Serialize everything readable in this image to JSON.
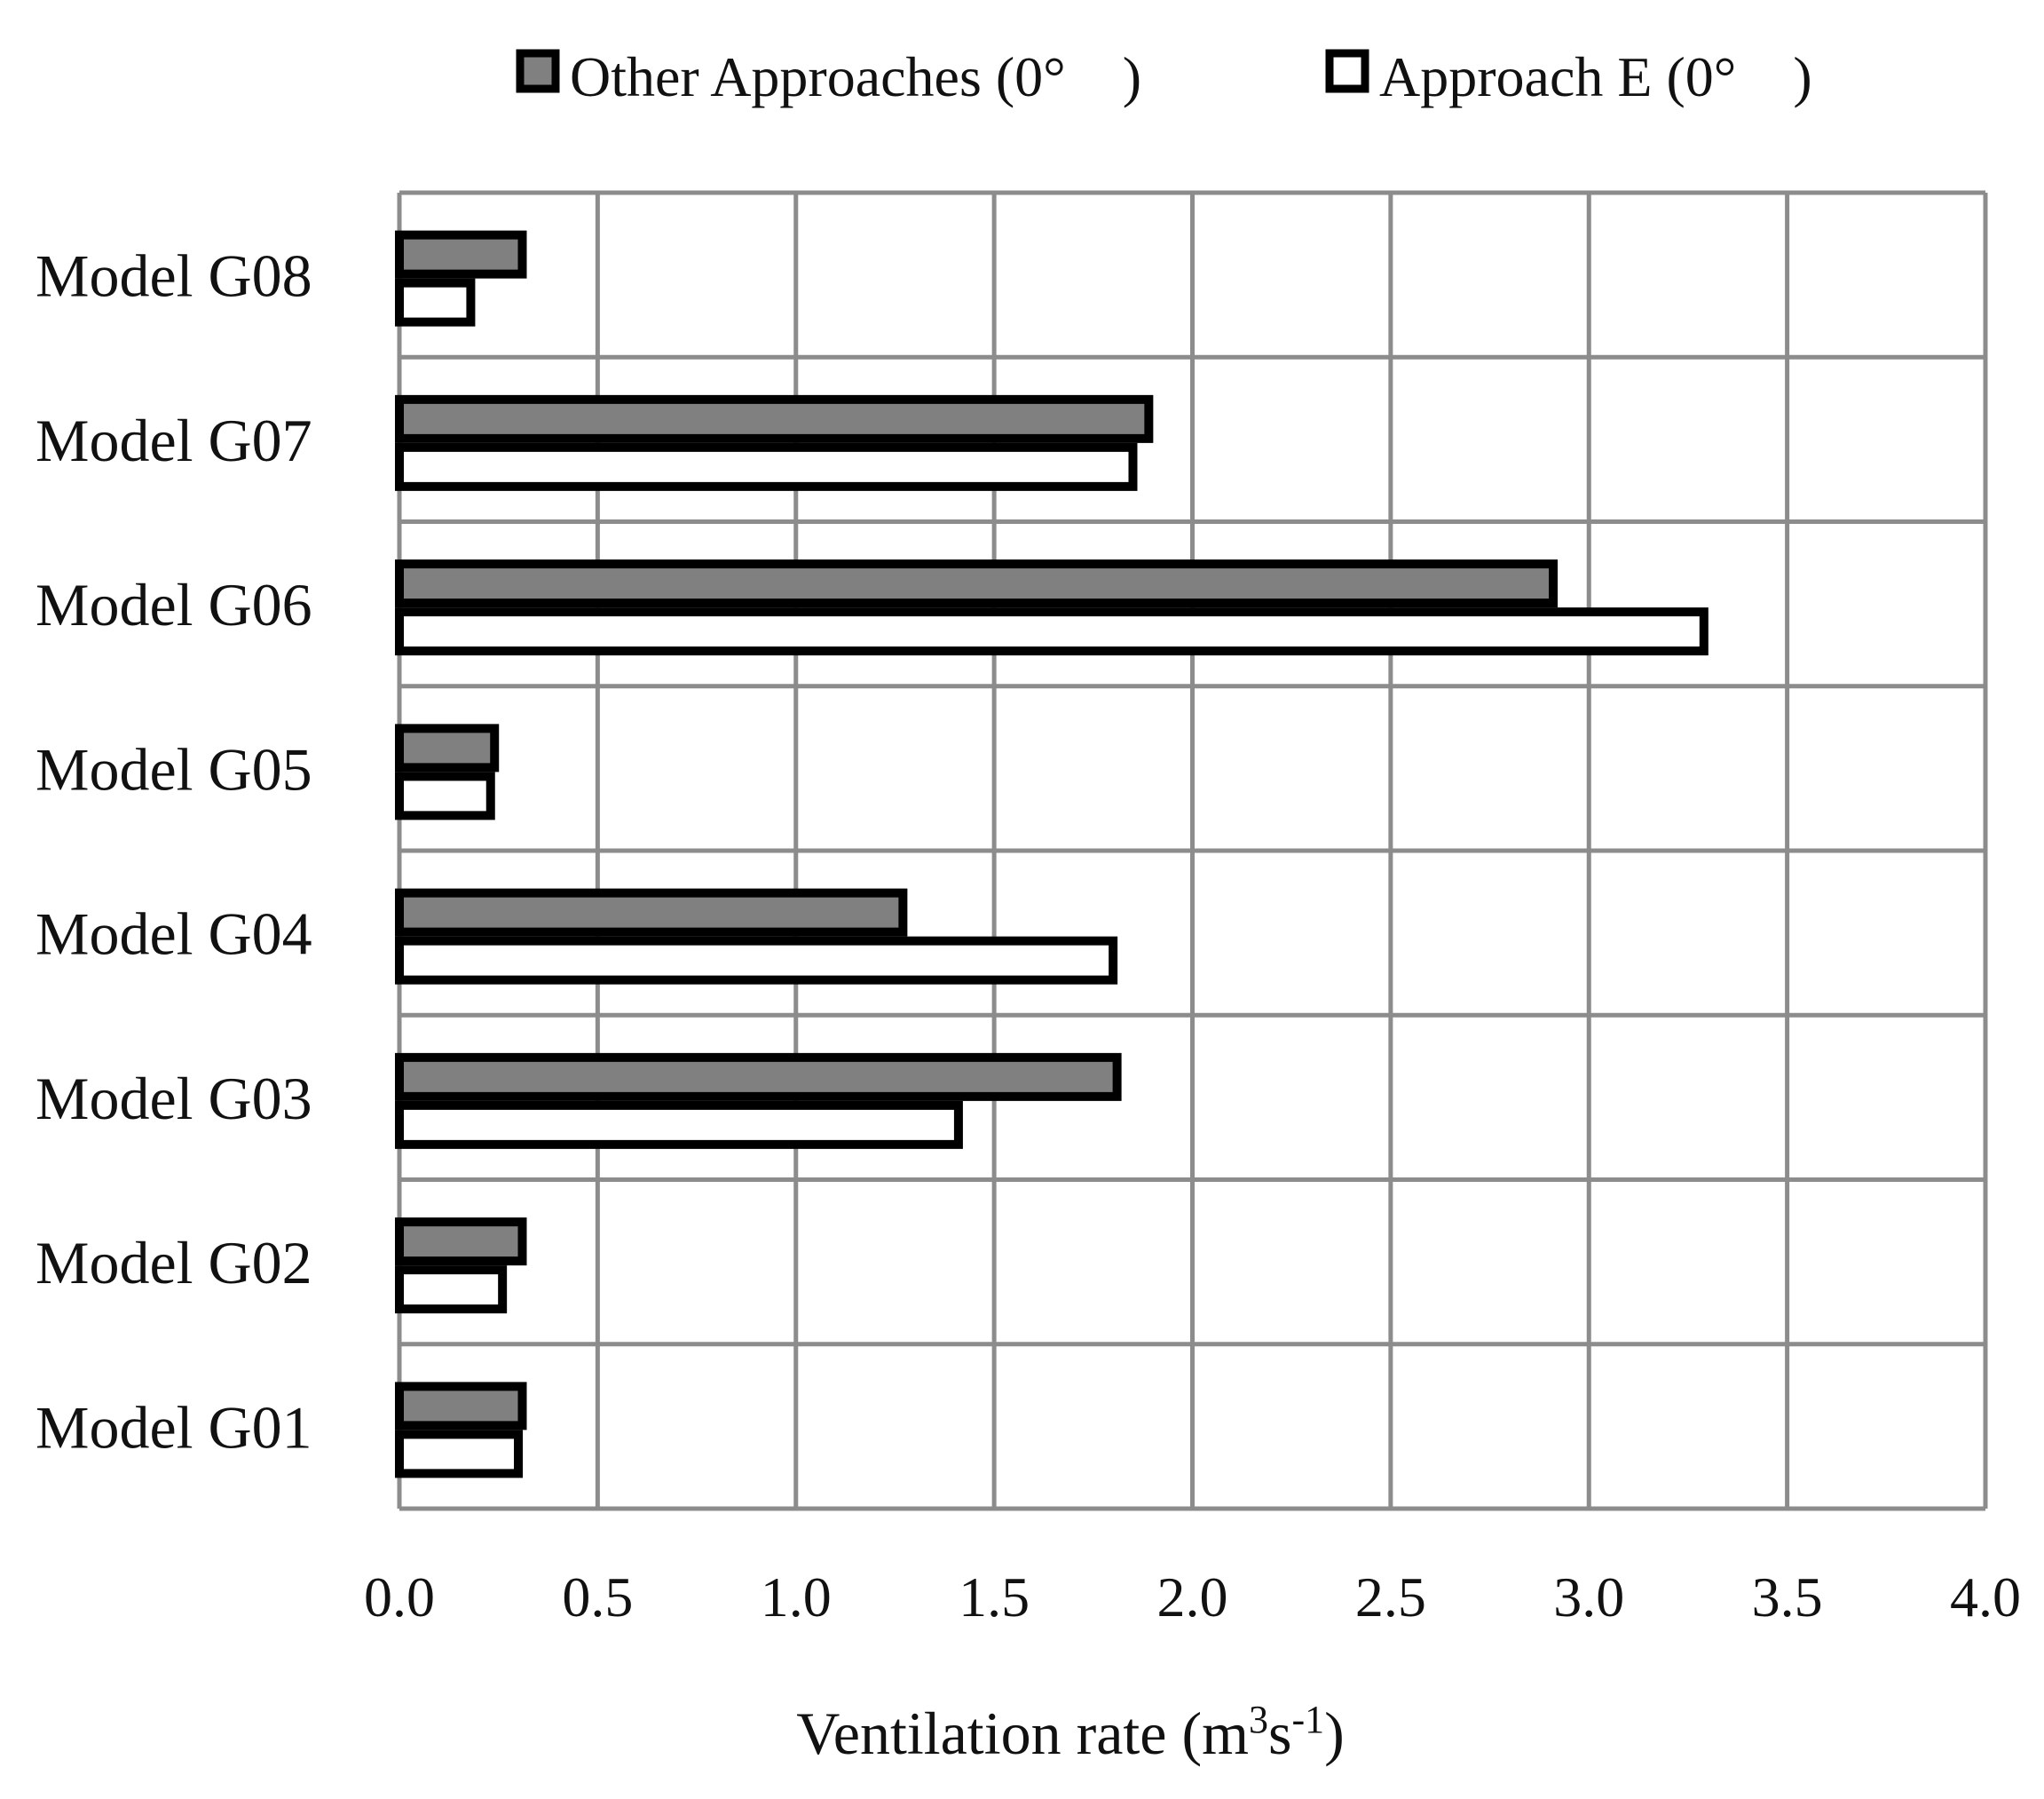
{
  "chart_data": {
    "type": "bar",
    "orientation": "horizontal",
    "title": "",
    "xlabel": "Ventilation rate (m³s⁻¹)",
    "xlabel_parts": {
      "prefix": "Ventilation rate (m",
      "sup1": "3",
      "mid": "s",
      "sup2": "-1",
      "suffix": ")"
    },
    "ylabel": "",
    "xlim": [
      0,
      4
    ],
    "x_ticks": [
      "0.0",
      "0.5",
      "1.0",
      "1.5",
      "2.0",
      "2.5",
      "3.0",
      "3.5",
      "4.0"
    ],
    "grid": true,
    "legend_position": "top",
    "categories": [
      "Model G01",
      "Model G02",
      "Model G03",
      "Model G04",
      "Model G05",
      "Model G06",
      "Model G07",
      "Model G08"
    ],
    "series": [
      {
        "name": "Other Approaches (0°　)",
        "color": "#808080",
        "values": [
          0.31,
          0.31,
          1.81,
          1.27,
          0.24,
          2.91,
          1.89,
          0.31
        ]
      },
      {
        "name": "Approach E (0°　)",
        "color": "#ffffff",
        "values": [
          0.3,
          0.26,
          1.41,
          1.8,
          0.23,
          3.29,
          1.85,
          0.18
        ]
      }
    ]
  },
  "colors": {
    "grid": "#8c8c8c",
    "bar_outline": "#000000",
    "text": "#111111"
  }
}
